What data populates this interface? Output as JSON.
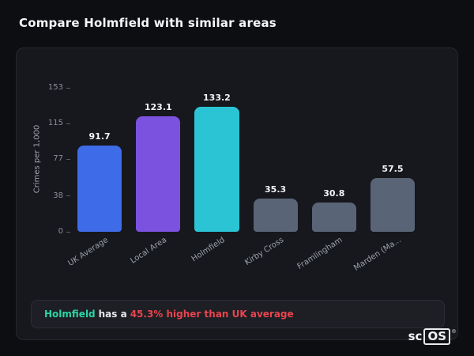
{
  "page": {
    "title": "Compare Holmfield with similar areas"
  },
  "chart_data": {
    "type": "bar",
    "title": "",
    "xlabel": "",
    "ylabel": "Crimes per 1,000",
    "categories": [
      "UK Average",
      "Local Area",
      "Holmfield",
      "Kirby Cross",
      "Framlingham",
      "Marden (Ma..."
    ],
    "values": [
      91.7,
      123.1,
      133.2,
      35.3,
      30.8,
      57.5
    ],
    "value_labels": [
      "91.7",
      "123.1",
      "133.2",
      "35.3",
      "30.8",
      "57.5"
    ],
    "bar_colors": [
      "#3e6be8",
      "#7b51e0",
      "#2bc4d5",
      "#5a6477",
      "#5a6477",
      "#5a6477"
    ],
    "yticks": [
      0,
      38,
      77,
      115,
      153
    ],
    "ylim": [
      0,
      153
    ],
    "grid": false,
    "legend": false
  },
  "note": {
    "subject": "Holmfield",
    "middle": "has a",
    "highlight": "45.3% higher than UK average"
  },
  "logo": {
    "prefix": "sc",
    "boxed": "OS",
    "registered": "®"
  },
  "colors": {
    "background": "#0d0e11",
    "card": "#17181d",
    "note_subject": "#2bd4a4",
    "note_highlight": "#e8444d",
    "accent_blue": "#3e6be8",
    "accent_purple": "#7b51e0",
    "accent_teal": "#2bc4d5",
    "bar_gray": "#5a6477"
  }
}
